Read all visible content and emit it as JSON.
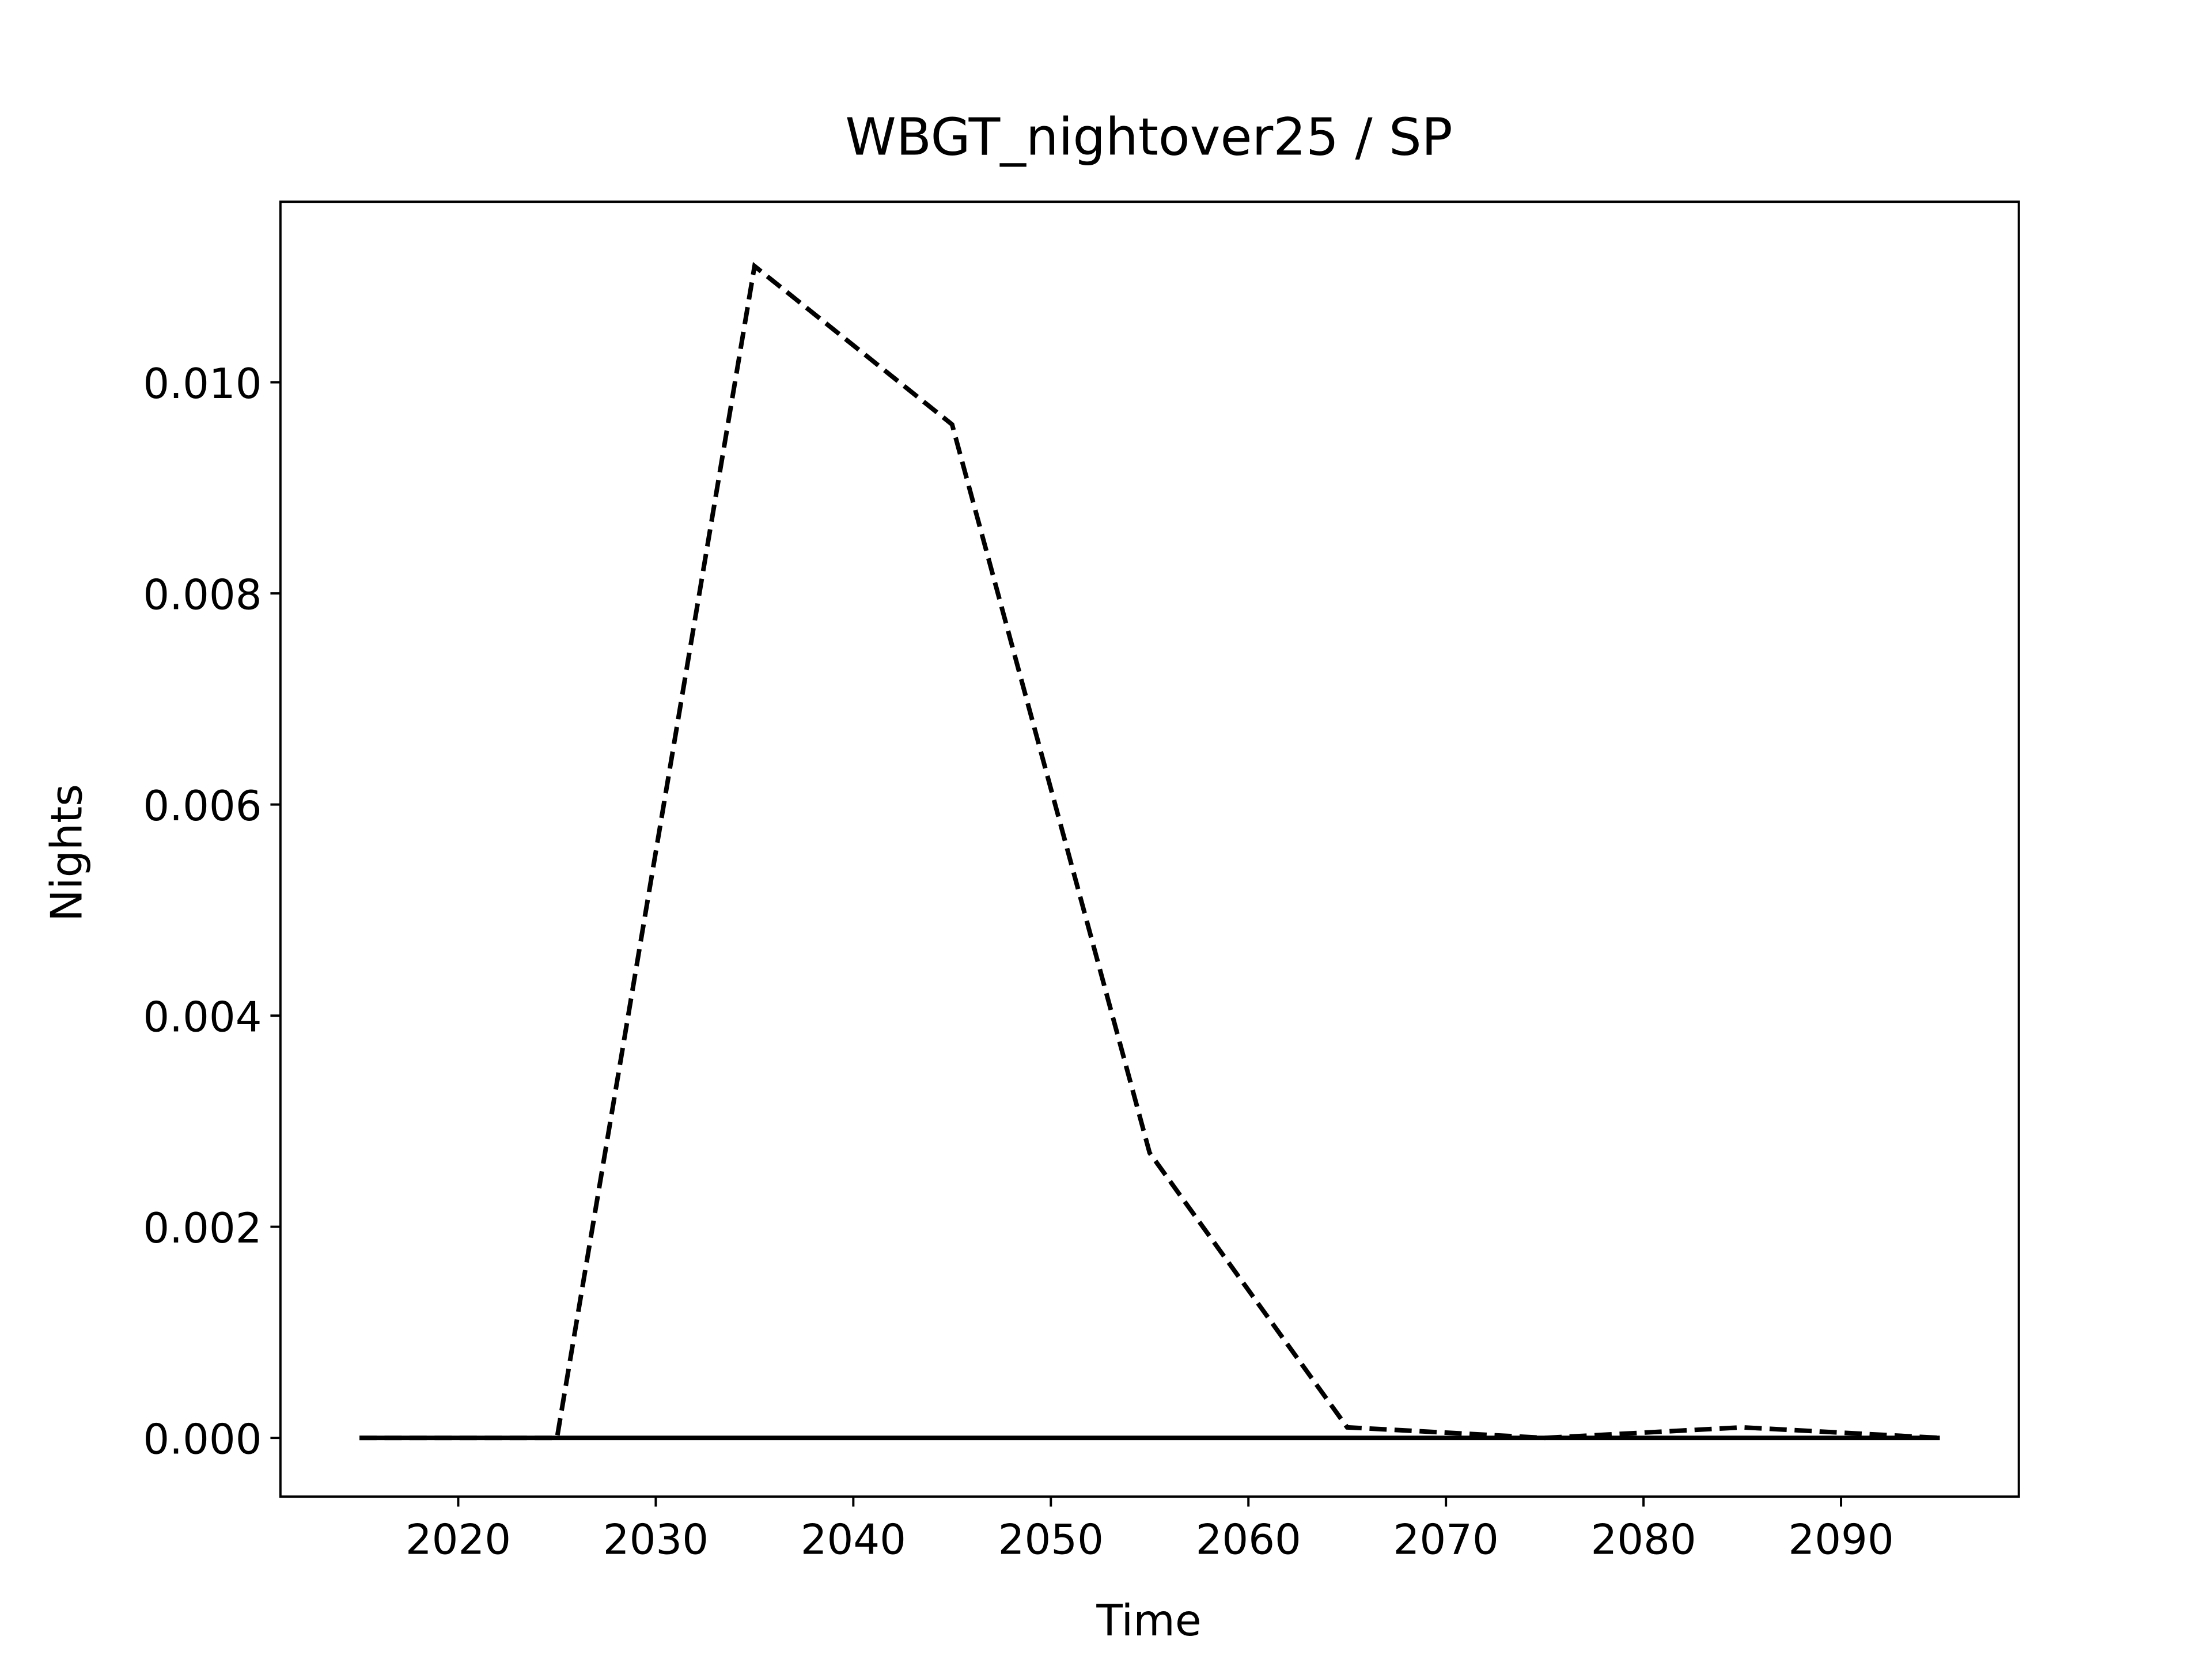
{
  "chart_data": {
    "type": "line",
    "title": "WBGT_nightover25 / SP",
    "xlabel": "Time",
    "ylabel": "Nights",
    "x": [
      2015,
      2025,
      2035,
      2045,
      2055,
      2065,
      2075,
      2085,
      2095
    ],
    "series": [
      {
        "color": "#000000",
        "linestyle": "dashed",
        "values": [
          0,
          0,
          0.0111,
          0.0096,
          0.0027,
          0.0001,
          0,
          0.0001,
          0
        ]
      },
      {
        "color": "#000000",
        "linestyle": "solid",
        "values": [
          0,
          0,
          0,
          0,
          0,
          0,
          0,
          0,
          0
        ]
      }
    ],
    "xlim": [
      2011,
      2099
    ],
    "ylim": [
      -0.000556,
      0.01171
    ],
    "xticks": [
      2020,
      2030,
      2040,
      2050,
      2060,
      2070,
      2080,
      2090
    ],
    "yticks": [
      {
        "value": 0,
        "label": "0.000"
      },
      {
        "value": 0.002,
        "label": "0.002"
      },
      {
        "value": 0.004,
        "label": "0.004"
      },
      {
        "value": 0.006,
        "label": "0.006"
      },
      {
        "value": 0.008,
        "label": "0.008"
      },
      {
        "value": 0.01,
        "label": "0.010"
      }
    ],
    "grid": false
  }
}
